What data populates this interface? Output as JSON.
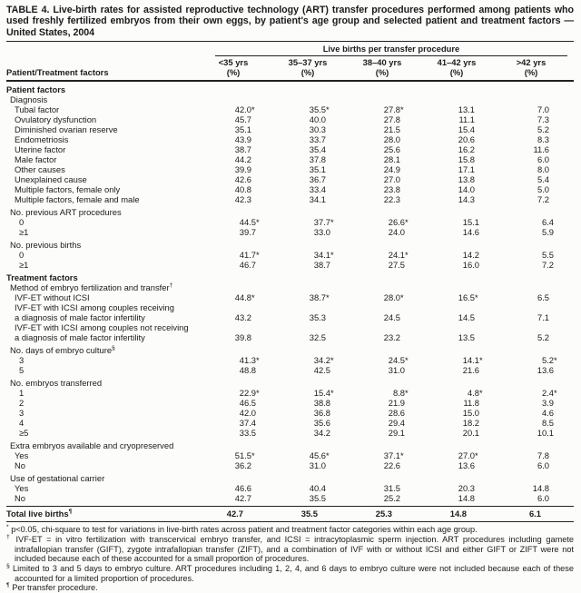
{
  "title": "TABLE 4. Live-birth rates for assisted reproductive technology (ART) transfer procedures performed among patients who used freshly fertilized embryos from their own eggs, by patient's age group and selected patient and treatment factors — United States, 2004",
  "table": {
    "span_header": "Live births per transfer procedure",
    "row_header": "Patient/Treatment factors",
    "columns": [
      {
        "range": "<35 yrs",
        "unit": "(%)"
      },
      {
        "range": "35–37 yrs",
        "unit": "(%)"
      },
      {
        "range": "38–40 yrs",
        "unit": "(%)"
      },
      {
        "range": "41–42 yrs",
        "unit": "(%)"
      },
      {
        "range": ">42 yrs",
        "unit": "(%)"
      }
    ],
    "rows": [
      {
        "type": "section",
        "label": "Patient factors",
        "indent": 0
      },
      {
        "type": "group",
        "label": "Diagnosis",
        "indent": 1
      },
      {
        "type": "item",
        "label": "Tubal factor",
        "indent": 2,
        "values": [
          "42.0*",
          "35.5*",
          "27.8*",
          "13.1",
          "7.0"
        ]
      },
      {
        "type": "item",
        "label": "Ovulatory dysfunction",
        "indent": 2,
        "values": [
          "45.7",
          "40.0",
          "27.8",
          "11.1",
          "7.3"
        ]
      },
      {
        "type": "item",
        "label": "Diminished ovarian reserve",
        "indent": 2,
        "values": [
          "35.1",
          "30.3",
          "21.5",
          "15.4",
          "5.2"
        ]
      },
      {
        "type": "item",
        "label": "Endometriosis",
        "indent": 2,
        "values": [
          "43.9",
          "33.7",
          "28.0",
          "20.6",
          "8.3"
        ]
      },
      {
        "type": "item",
        "label": "Uterine factor",
        "indent": 2,
        "values": [
          "38.7",
          "35.4",
          "25.6",
          "16.2",
          "11.6"
        ]
      },
      {
        "type": "item",
        "label": "Male factor",
        "indent": 2,
        "values": [
          "44.2",
          "37.8",
          "28.1",
          "15.8",
          "6.0"
        ]
      },
      {
        "type": "item",
        "label": "Other causes",
        "indent": 2,
        "values": [
          "39.9",
          "35.1",
          "24.9",
          "17.1",
          "8.0"
        ]
      },
      {
        "type": "item",
        "label": "Unexplained cause",
        "indent": 2,
        "values": [
          "42.6",
          "36.7",
          "27.0",
          "13.8",
          "5.4"
        ]
      },
      {
        "type": "item",
        "label": "Multiple factors, female only",
        "indent": 2,
        "values": [
          "40.8",
          "33.4",
          "23.8",
          "14.0",
          "5.0"
        ]
      },
      {
        "type": "item",
        "label": "Multiple factors, female and male",
        "indent": 2,
        "values": [
          "42.3",
          "34.1",
          "22.3",
          "14.3",
          "7.2"
        ]
      },
      {
        "type": "group",
        "label": "No. previous ART procedures",
        "indent": 1,
        "gap": true
      },
      {
        "type": "item",
        "label": "0",
        "indent": 3,
        "values": [
          "44.5*",
          "37.7*",
          "26.6*",
          "15.1",
          "6.4"
        ]
      },
      {
        "type": "item",
        "label": "≥1",
        "indent": 3,
        "values": [
          "39.7",
          "33.0",
          "24.0",
          "14.6",
          "5.9"
        ]
      },
      {
        "type": "group",
        "label": "No. previous births",
        "indent": 1,
        "gap": true
      },
      {
        "type": "item",
        "label": "0",
        "indent": 3,
        "values": [
          "41.7*",
          "34.1*",
          "24.1*",
          "14.2",
          "5.5"
        ]
      },
      {
        "type": "item",
        "label": "≥1",
        "indent": 3,
        "values": [
          "46.7",
          "38.7",
          "27.5",
          "16.0",
          "7.2"
        ]
      },
      {
        "type": "section",
        "label": "Treatment factors",
        "indent": 0,
        "gap": true
      },
      {
        "type": "group",
        "label": "Method of embryo fertilization and transfer",
        "sup": "†",
        "indent": 1
      },
      {
        "type": "item",
        "label": "IVF-ET without ICSI",
        "indent": 2,
        "values": [
          "44.8*",
          "38.7*",
          "28.0*",
          "16.5*",
          "6.5"
        ]
      },
      {
        "type": "item",
        "label": "IVF-ET with ICSI among couples receiving",
        "label2": "a diagnosis of male factor infertility",
        "indent": 2,
        "values": [
          "43.2",
          "35.3",
          "24.5",
          "14.5",
          "7.1"
        ]
      },
      {
        "type": "item",
        "label": "IVF-ET with ICSI among couples not receiving",
        "label2": "a diagnosis of male factor infertility",
        "indent": 2,
        "values": [
          "39.8",
          "32.5",
          "23.2",
          "13.5",
          "5.2"
        ]
      },
      {
        "type": "group",
        "label": "No. days of embryo culture",
        "sup": "§",
        "indent": 1,
        "gap": true
      },
      {
        "type": "item",
        "label": "3",
        "indent": 3,
        "values": [
          "41.3*",
          "34.2*",
          "24.5*",
          "14.1*",
          "5.2*"
        ]
      },
      {
        "type": "item",
        "label": "5",
        "indent": 3,
        "values": [
          "48.8",
          "42.5",
          "31.0",
          "21.6",
          "13.6"
        ]
      },
      {
        "type": "group",
        "label": "No. embryos transferred",
        "indent": 1,
        "gap": true
      },
      {
        "type": "item",
        "label": "1",
        "indent": 3,
        "values": [
          "22.9*",
          "15.4*",
          "8.8*",
          "4.8*",
          "2.4*"
        ]
      },
      {
        "type": "item",
        "label": "2",
        "indent": 3,
        "values": [
          "46.5",
          "38.8",
          "21.9",
          "11.8",
          "3.9"
        ]
      },
      {
        "type": "item",
        "label": "3",
        "indent": 3,
        "values": [
          "42.0",
          "36.8",
          "28.6",
          "15.0",
          "4.6"
        ]
      },
      {
        "type": "item",
        "label": "4",
        "indent": 3,
        "values": [
          "37.4",
          "35.6",
          "29.4",
          "18.2",
          "8.5"
        ]
      },
      {
        "type": "item",
        "label": "≥5",
        "indent": 3,
        "values": [
          "33.5",
          "34.2",
          "29.1",
          "20.1",
          "10.1"
        ]
      },
      {
        "type": "group",
        "label": "Extra embryos available and cryopreserved",
        "indent": 1,
        "gap": true
      },
      {
        "type": "item",
        "label": "Yes",
        "indent": 2,
        "values": [
          "51.5*",
          "45.6*",
          "37.1*",
          "27.0*",
          "7.8"
        ]
      },
      {
        "type": "item",
        "label": "No",
        "indent": 2,
        "values": [
          "36.2",
          "31.0",
          "22.6",
          "13.6",
          "6.0"
        ]
      },
      {
        "type": "group",
        "label": "Use of gestational carrier",
        "indent": 1,
        "gap": true
      },
      {
        "type": "item",
        "label": "Yes",
        "indent": 2,
        "values": [
          "46.6",
          "40.4",
          "31.5",
          "20.3",
          "14.8"
        ]
      },
      {
        "type": "item",
        "label": "No",
        "indent": 2,
        "values": [
          "42.7",
          "35.5",
          "25.2",
          "14.8",
          "6.0"
        ]
      },
      {
        "type": "total",
        "label": "Total live births",
        "sup": "¶",
        "indent": 0,
        "values": [
          "42.7",
          "35.5",
          "25.3",
          "14.8",
          "6.1"
        ]
      }
    ]
  },
  "footnotes": [
    {
      "marker": "*",
      "text": "p<0.05, chi-square to test for variations in live-birth rates across patient and treatment factor categories within each age group."
    },
    {
      "marker": "†",
      "text": "IVF-ET = in vitro fertilization with transcervical embryo transfer, and ICSI = intracytoplasmic sperm injection. ART procedures including gamete intrafallopian transfer (GIFT), zygote intrafallopian transfer (ZIFT), and a combination of IVF with or without ICSI and either GIFT or ZIFT were not included because each of these accounted for a small proportion of procedures."
    },
    {
      "marker": "§",
      "text": "Limited to 3 and 5 days to embryo culture. ART procedures including 1, 2, 4, and 6 days to embryo culture were not included because each of these accounted for a limited proportion of procedures."
    },
    {
      "marker": "¶",
      "text": "Per transfer procedure."
    }
  ],
  "colors": {
    "text": "#1b1b1b",
    "background": "#fcfcfb",
    "rule": "#222222"
  }
}
